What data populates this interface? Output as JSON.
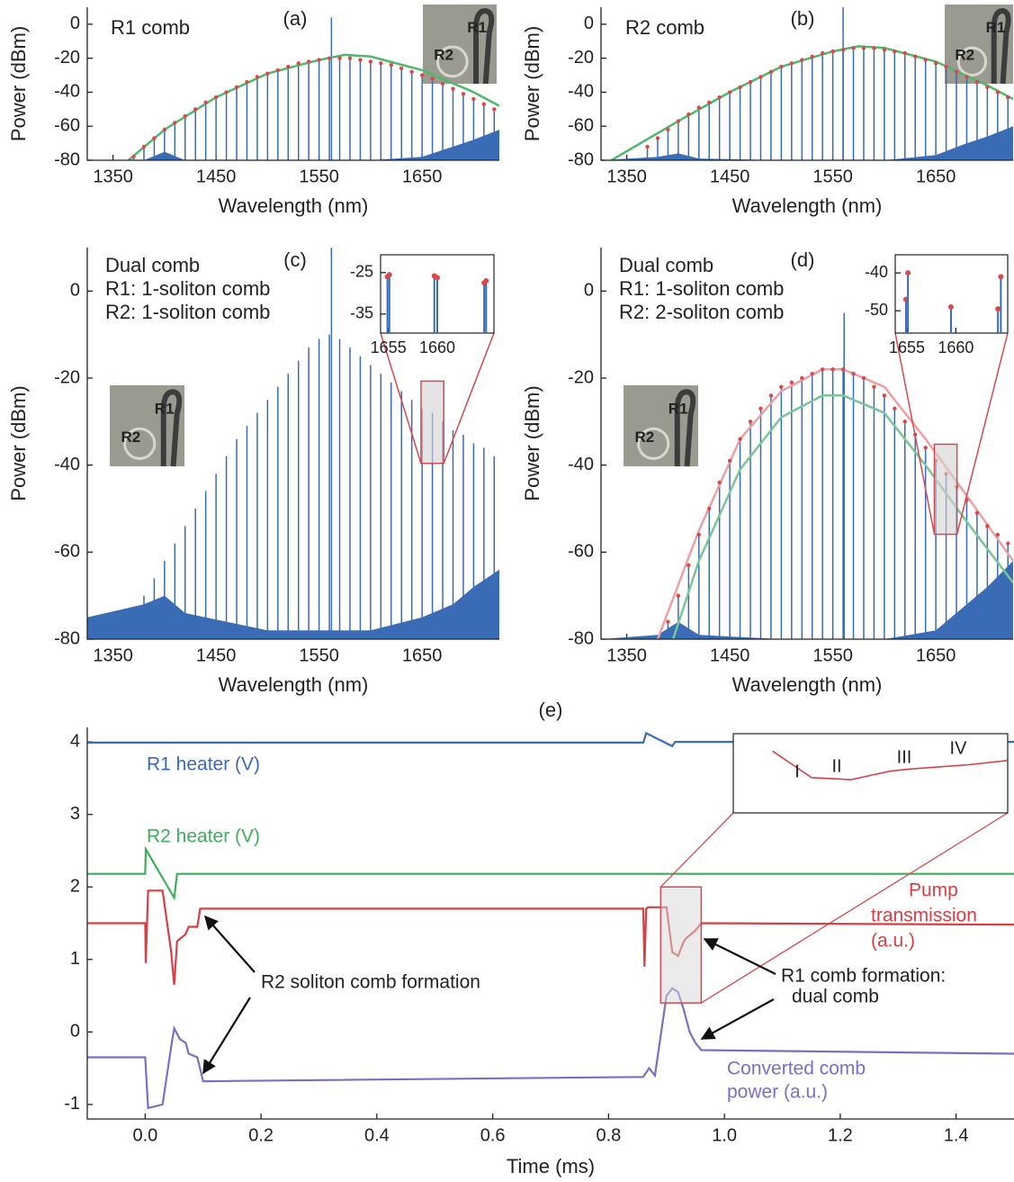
{
  "chart_data": [
    {
      "type": "stem",
      "panel_label": "(a)",
      "text": [
        "R1 comb"
      ],
      "xlabel": "Wavelength (nm)",
      "ylabel": "Power (dBm)",
      "xlim": [
        1325,
        1725
      ],
      "ylim": [
        -80,
        10
      ],
      "xticks": [
        1350,
        1450,
        1550,
        1650
      ],
      "yticks": [
        -80,
        -60,
        -40,
        -20,
        0
      ],
      "x": [
        1370,
        1380,
        1390,
        1400,
        1410,
        1420,
        1430,
        1440,
        1450,
        1460,
        1470,
        1480,
        1490,
        1500,
        1510,
        1520,
        1530,
        1540,
        1550,
        1560,
        1570,
        1580,
        1590,
        1600,
        1610,
        1620,
        1630,
        1640,
        1650,
        1660,
        1670,
        1680,
        1690,
        1700,
        1710,
        1720
      ],
      "series": [
        {
          "color": "#3a6bb5",
          "values": [
            -78,
            -72,
            -67,
            -62,
            -58,
            -54,
            -50,
            -46,
            -43,
            -40,
            -37,
            -34,
            -31,
            -29,
            -27,
            -25,
            -23,
            -22,
            -21,
            -20,
            -20,
            -20,
            -21,
            -22,
            -23,
            -24,
            -26,
            -28,
            -30,
            -32,
            -35,
            -38,
            -41,
            -44,
            -47,
            -50
          ]
        }
      ],
      "peak_color": "#d94a4a",
      "pump": {
        "x": 1562,
        "value": 4
      },
      "fits": [
        {
          "color": "#4fb86a",
          "x": [
            1365,
            1400,
            1450,
            1500,
            1550,
            1575,
            1600,
            1650,
            1700,
            1725
          ],
          "values": [
            -80,
            -62,
            -43,
            -29,
            -21,
            -18,
            -19,
            -27,
            -40,
            -48
          ]
        }
      ],
      "floor": {
        "x": [
          1325,
          1380,
          1400,
          1420,
          1500,
          1600,
          1650,
          1680,
          1700,
          1725
        ],
        "values": [
          -80,
          -80,
          -75,
          -80,
          -80,
          -80,
          -78,
          -72,
          -68,
          -62
        ]
      },
      "photo_labels": [
        "R1",
        "R2"
      ]
    },
    {
      "type": "stem",
      "panel_label": "(b)",
      "text": [
        "R2 comb"
      ],
      "xlabel": "Wavelength (nm)",
      "ylabel": "Power (dBm)",
      "xlim": [
        1325,
        1725
      ],
      "ylim": [
        -80,
        10
      ],
      "xticks": [
        1350,
        1450,
        1550,
        1650
      ],
      "yticks": [
        -80,
        -60,
        -40,
        -20,
        0
      ],
      "x": [
        1370,
        1380,
        1390,
        1400,
        1410,
        1420,
        1430,
        1440,
        1450,
        1460,
        1470,
        1480,
        1490,
        1500,
        1510,
        1520,
        1530,
        1540,
        1550,
        1560,
        1570,
        1580,
        1590,
        1600,
        1610,
        1620,
        1630,
        1640,
        1650,
        1660,
        1670,
        1680,
        1690,
        1700,
        1710,
        1720
      ],
      "series": [
        {
          "color": "#3a6bb5",
          "values": [
            -72,
            -67,
            -62,
            -57,
            -53,
            -49,
            -46,
            -43,
            -40,
            -37,
            -34,
            -31,
            -28,
            -25,
            -23,
            -21,
            -19,
            -17,
            -16,
            -15,
            -14,
            -14,
            -14,
            -15,
            -16,
            -17,
            -19,
            -21,
            -23,
            -25,
            -28,
            -31,
            -34,
            -37,
            -40,
            -43
          ]
        }
      ],
      "peak_color": "#d94a4a",
      "pump": {
        "x": 1560,
        "value": 10
      },
      "fits": [
        {
          "color": "#4fb86a",
          "x": [
            1335,
            1400,
            1450,
            1500,
            1550,
            1575,
            1600,
            1650,
            1700,
            1725
          ],
          "values": [
            -80,
            -57,
            -40,
            -25,
            -16,
            -13,
            -14,
            -22,
            -36,
            -44
          ]
        }
      ],
      "floor": {
        "x": [
          1325,
          1380,
          1400,
          1420,
          1500,
          1600,
          1650,
          1680,
          1700,
          1725
        ],
        "values": [
          -80,
          -78,
          -76,
          -79,
          -80,
          -80,
          -77,
          -70,
          -66,
          -60
        ]
      },
      "photo_labels": [
        "R1",
        "R2"
      ]
    },
    {
      "type": "stem",
      "panel_label": "(c)",
      "text": [
        "Dual comb",
        "R1: 1-soliton comb",
        "R2: 1-soliton comb"
      ],
      "xlabel": "Wavelength (nm)",
      "ylabel": "Power (dBm)",
      "xlim": [
        1325,
        1725
      ],
      "ylim": [
        -80,
        10
      ],
      "xticks": [
        1350,
        1450,
        1550,
        1650
      ],
      "yticks": [
        -80,
        -60,
        -40,
        -20,
        0
      ],
      "x": [
        1370,
        1380,
        1390,
        1400,
        1410,
        1420,
        1430,
        1440,
        1450,
        1460,
        1470,
        1480,
        1490,
        1500,
        1510,
        1520,
        1530,
        1540,
        1550,
        1560,
        1570,
        1580,
        1590,
        1600,
        1610,
        1620,
        1630,
        1640,
        1650,
        1660,
        1670,
        1680,
        1690,
        1700,
        1710,
        1720
      ],
      "series": [
        {
          "color": "#3a6bb5",
          "values": [
            -74,
            -70,
            -66,
            -62,
            -58,
            -54,
            -50,
            -46,
            -42,
            -38,
            -34,
            -31,
            -28,
            -25,
            -22,
            -19,
            -16,
            -13,
            -11,
            -10,
            -11,
            -13,
            -15,
            -17,
            -19,
            -21,
            -23,
            -25,
            -27,
            -28,
            -30,
            -32,
            -33,
            -35,
            -36,
            -38
          ]
        }
      ],
      "pump": {
        "x": 1562,
        "value": 10
      },
      "fits": [],
      "floor": {
        "x": [
          1325,
          1380,
          1400,
          1420,
          1500,
          1600,
          1650,
          1680,
          1700,
          1725
        ],
        "values": [
          -75,
          -72,
          -70,
          -74,
          -78,
          -78,
          -75,
          -72,
          -68,
          -64
        ]
      },
      "photo_labels": [
        "R1",
        "R2"
      ],
      "inset": {
        "xlim": [
          1654.2,
          1665.8
        ],
        "ylim": [
          -39.6,
          -20.7
        ],
        "xticks": [
          1655,
          1660
        ],
        "yticks": [
          -25,
          -35
        ],
        "x": [
          1654.9,
          1655.1,
          1659.7,
          1660,
          1664.8,
          1665
        ],
        "values": [
          -26,
          -25.5,
          -25.8,
          -26.2,
          -27.5,
          -27
        ],
        "color": "#3a6bb5",
        "peak_color": "#d94a4a",
        "box_color": "#d24a4f"
      }
    },
    {
      "type": "stem",
      "panel_label": "(d)",
      "text": [
        "Dual comb",
        "R1: 1-soliton comb",
        "R2: 2-soliton comb"
      ],
      "xlabel": "Wavelength (nm)",
      "ylabel": "Power (dBm)",
      "xlim": [
        1325,
        1725
      ],
      "ylim": [
        -80,
        10
      ],
      "xticks": [
        1350,
        1450,
        1550,
        1650
      ],
      "yticks": [
        -80,
        -60,
        -40,
        -20,
        0
      ],
      "x": [
        1370,
        1380,
        1390,
        1400,
        1410,
        1420,
        1430,
        1440,
        1450,
        1460,
        1470,
        1480,
        1490,
        1500,
        1510,
        1520,
        1530,
        1540,
        1550,
        1560,
        1570,
        1580,
        1590,
        1600,
        1610,
        1620,
        1630,
        1640,
        1650,
        1660,
        1670,
        1680,
        1690,
        1700,
        1710,
        1720
      ],
      "series": [
        {
          "color": "#3a6bb5",
          "values": [
            null,
            null,
            -76,
            -70,
            -63,
            -56,
            -50,
            -44,
            -39,
            -34,
            -30,
            -27,
            -24,
            -22,
            -21,
            -20,
            -19,
            -18,
            -18,
            -18,
            -19,
            -20,
            -22,
            -24,
            -27,
            -30,
            -33,
            -36,
            -39,
            -42,
            -45,
            -48,
            -51,
            -54,
            -56,
            -58
          ]
        }
      ],
      "peak_color": "#d94a4a",
      "pump": {
        "x": 1561,
        "value": -5
      },
      "fits": [
        {
          "color": "#eda0a3",
          "x": [
            1380,
            1420,
            1460,
            1500,
            1540,
            1560,
            1600,
            1640,
            1680,
            1725
          ],
          "values": [
            -80,
            -55,
            -34,
            -23,
            -18,
            -18,
            -22,
            -34,
            -47,
            -62
          ]
        },
        {
          "color": "#7ac596",
          "x": [
            1395,
            1420,
            1460,
            1500,
            1540,
            1560,
            1600,
            1640,
            1680,
            1725
          ],
          "values": [
            -80,
            -62,
            -41,
            -29,
            -24,
            -24,
            -28,
            -40,
            -53,
            -67
          ]
        }
      ],
      "floor": {
        "x": [
          1325,
          1380,
          1400,
          1420,
          1500,
          1600,
          1650,
          1680,
          1700,
          1725
        ],
        "values": [
          -80,
          -79,
          -76,
          -79,
          -80,
          -80,
          -78,
          -72,
          -68,
          -62
        ]
      },
      "photo_labels": [
        "R1",
        "R2"
      ],
      "inset": {
        "xlim": [
          1653.8,
          1665.3
        ],
        "ylim": [
          -55.9,
          -35.2
        ],
        "xticks": [
          1655,
          1660
        ],
        "yticks": [
          -40,
          -50
        ],
        "x": [
          1654.9,
          1655.1,
          1659.5,
          1664.3,
          1664.6
        ],
        "values": [
          -47,
          -40,
          -49,
          -49.5,
          -41
        ],
        "color": "#3a6bb5",
        "peak_color": "#d94a4a",
        "box_color": "#d24a4f"
      }
    },
    {
      "type": "line",
      "panel_label": "(e)",
      "xlabel": "Time (ms)",
      "xlim": [
        -0.1,
        1.5
      ],
      "ylim": [
        -1.2,
        4.2
      ],
      "xticks": [
        {
          "value": 0,
          "label": "0.0"
        },
        0.2,
        0.4,
        0.6,
        0.8,
        {
          "value": 1,
          "label": "1.0"
        },
        1.2,
        1.4
      ],
      "yticks": [
        -1,
        0,
        1,
        2,
        3,
        4
      ],
      "series": [
        {
          "color": "#3a6bb5",
          "x": [
            -0.1,
            0.86,
            0.865,
            0.91,
            0.915,
            1.5
          ],
          "values": [
            3.99,
            3.99,
            4.12,
            3.94,
            4.0,
            4.0
          ]
        },
        {
          "color": "#3fae5a",
          "x": [
            -0.1,
            0,
            0.001,
            0.05,
            0.055,
            1.5
          ],
          "values": [
            2.18,
            2.18,
            2.52,
            1.85,
            2.18,
            2.18
          ]
        },
        {
          "color": "#d64045",
          "x": [
            -0.1,
            0,
            0.001,
            0.005,
            0.03,
            0.045,
            0.05,
            0.055,
            0.07,
            0.075,
            0.09,
            0.095,
            0.1,
            0.86,
            0.862,
            0.865,
            0.868,
            0.88,
            0.9,
            0.91,
            0.92,
            0.93,
            0.935,
            0.95,
            0.96,
            1.5
          ],
          "values": [
            1.5,
            1.5,
            0.95,
            1.95,
            1.95,
            1.1,
            0.65,
            1.25,
            1.35,
            1.45,
            1.45,
            1.7,
            1.7,
            1.7,
            0.9,
            1.7,
            1.72,
            1.72,
            1.72,
            1.1,
            1.05,
            1.25,
            1.3,
            1.4,
            1.5,
            1.48
          ]
        },
        {
          "color": "#7a70c2",
          "x": [
            -0.1,
            0,
            0.005,
            0.03,
            0.045,
            0.05,
            0.06,
            0.07,
            0.075,
            0.09,
            0.1,
            0.86,
            0.87,
            0.88,
            0.9,
            0.91,
            0.92,
            0.93,
            0.94,
            0.95,
            0.96,
            1.5
          ],
          "values": [
            -0.35,
            -0.35,
            -1.05,
            -1.0,
            -0.2,
            0.05,
            -0.1,
            -0.15,
            -0.3,
            -0.35,
            -0.68,
            -0.62,
            -0.5,
            -0.6,
            0.5,
            0.6,
            0.55,
            0.3,
            0.0,
            -0.15,
            -0.25,
            -0.3
          ]
        }
      ],
      "annotations": [
        "R1 heater (V)",
        "R2 heater (V)",
        "Pump",
        "transmission",
        "(a.u.)",
        "R2 soliton comb formation",
        "R1 comb formation:",
        "dual comb",
        "Converted comb",
        "power (a.u.)"
      ],
      "inset": {
        "xlim": [
          0.89,
          0.96
        ],
        "ylim": [
          0.4,
          2.0
        ],
        "labels": [
          "I",
          "II",
          "III",
          "IV"
        ],
        "box_color": "#d24a4f"
      }
    }
  ]
}
